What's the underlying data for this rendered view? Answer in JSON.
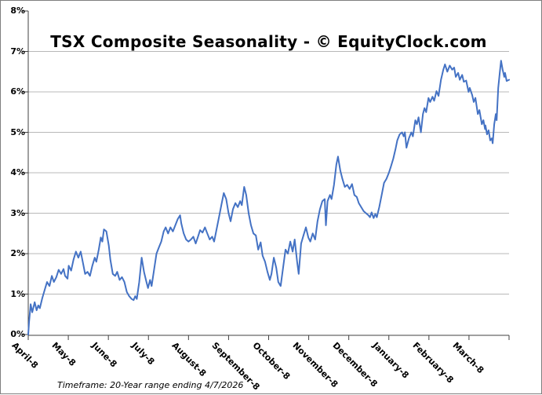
{
  "frame": {
    "border_color": "#7f7f7f",
    "background": "#ffffff"
  },
  "chart_data": {
    "type": "line",
    "title": "TSX Composite Seasonality - © EquityClock.com",
    "footnote": "Timeframe: 20-Year range ending 4/7/2026",
    "legend_position": "none",
    "grid": "horizontal",
    "grid_color": "#b8b8b8",
    "axis_color": "#404040",
    "line_color": "#4472c4",
    "ylim": [
      0,
      8
    ],
    "xlim_months": [
      0,
      12
    ],
    "y_tick_labels": [
      "0%",
      "1%",
      "2%",
      "3%",
      "4%",
      "5%",
      "6%",
      "7%",
      "8%"
    ],
    "x_tick_labels": [
      "April-8",
      "May-8",
      "June-8",
      "July-8",
      "August-8",
      "September-8",
      "October-8",
      "November-8",
      "December-8",
      "January-8",
      "February-8",
      "March-8"
    ],
    "series": [
      {
        "color": "#4472c4",
        "points": [
          [
            0.0,
            0.0
          ],
          [
            0.02,
            0.3
          ],
          [
            0.06,
            0.75
          ],
          [
            0.1,
            0.55
          ],
          [
            0.16,
            0.8
          ],
          [
            0.21,
            0.6
          ],
          [
            0.25,
            0.72
          ],
          [
            0.29,
            0.65
          ],
          [
            0.35,
            0.9
          ],
          [
            0.41,
            1.1
          ],
          [
            0.47,
            1.3
          ],
          [
            0.53,
            1.2
          ],
          [
            0.59,
            1.45
          ],
          [
            0.64,
            1.3
          ],
          [
            0.7,
            1.42
          ],
          [
            0.76,
            1.6
          ],
          [
            0.82,
            1.5
          ],
          [
            0.88,
            1.62
          ],
          [
            0.92,
            1.45
          ],
          [
            0.98,
            1.38
          ],
          [
            1.01,
            1.7
          ],
          [
            1.07,
            1.58
          ],
          [
            1.13,
            1.85
          ],
          [
            1.19,
            2.05
          ],
          [
            1.25,
            1.9
          ],
          [
            1.31,
            2.05
          ],
          [
            1.37,
            1.75
          ],
          [
            1.42,
            1.5
          ],
          [
            1.48,
            1.55
          ],
          [
            1.54,
            1.45
          ],
          [
            1.6,
            1.7
          ],
          [
            1.66,
            1.9
          ],
          [
            1.7,
            1.8
          ],
          [
            1.76,
            2.1
          ],
          [
            1.81,
            2.4
          ],
          [
            1.85,
            2.3
          ],
          [
            1.89,
            2.6
          ],
          [
            1.95,
            2.55
          ],
          [
            2.01,
            2.2
          ],
          [
            2.05,
            1.85
          ],
          [
            2.11,
            1.5
          ],
          [
            2.17,
            1.45
          ],
          [
            2.22,
            1.55
          ],
          [
            2.28,
            1.35
          ],
          [
            2.34,
            1.42
          ],
          [
            2.4,
            1.3
          ],
          [
            2.46,
            1.05
          ],
          [
            2.52,
            0.95
          ],
          [
            2.58,
            0.88
          ],
          [
            2.63,
            0.85
          ],
          [
            2.67,
            0.95
          ],
          [
            2.71,
            0.88
          ],
          [
            2.77,
            1.3
          ],
          [
            2.83,
            1.9
          ],
          [
            2.89,
            1.55
          ],
          [
            2.95,
            1.3
          ],
          [
            2.99,
            1.15
          ],
          [
            3.04,
            1.35
          ],
          [
            3.08,
            1.2
          ],
          [
            3.14,
            1.6
          ],
          [
            3.2,
            2.0
          ],
          [
            3.26,
            2.15
          ],
          [
            3.32,
            2.3
          ],
          [
            3.38,
            2.55
          ],
          [
            3.43,
            2.65
          ],
          [
            3.49,
            2.5
          ],
          [
            3.55,
            2.65
          ],
          [
            3.61,
            2.55
          ],
          [
            3.67,
            2.7
          ],
          [
            3.73,
            2.85
          ],
          [
            3.79,
            2.95
          ],
          [
            3.82,
            2.75
          ],
          [
            3.88,
            2.5
          ],
          [
            3.94,
            2.35
          ],
          [
            4.0,
            2.3
          ],
          [
            4.06,
            2.35
          ],
          [
            4.12,
            2.42
          ],
          [
            4.18,
            2.25
          ],
          [
            4.23,
            2.4
          ],
          [
            4.29,
            2.58
          ],
          [
            4.35,
            2.52
          ],
          [
            4.41,
            2.65
          ],
          [
            4.47,
            2.5
          ],
          [
            4.53,
            2.35
          ],
          [
            4.59,
            2.42
          ],
          [
            4.64,
            2.3
          ],
          [
            4.7,
            2.6
          ],
          [
            4.76,
            2.9
          ],
          [
            4.82,
            3.2
          ],
          [
            4.88,
            3.5
          ],
          [
            4.94,
            3.35
          ],
          [
            5.0,
            3.0
          ],
          [
            5.05,
            2.8
          ],
          [
            5.11,
            3.1
          ],
          [
            5.17,
            3.25
          ],
          [
            5.23,
            3.15
          ],
          [
            5.29,
            3.3
          ],
          [
            5.33,
            3.2
          ],
          [
            5.39,
            3.65
          ],
          [
            5.44,
            3.45
          ],
          [
            5.5,
            3.0
          ],
          [
            5.56,
            2.7
          ],
          [
            5.62,
            2.5
          ],
          [
            5.68,
            2.45
          ],
          [
            5.74,
            2.1
          ],
          [
            5.8,
            2.28
          ],
          [
            5.85,
            1.95
          ],
          [
            5.91,
            1.8
          ],
          [
            5.97,
            1.55
          ],
          [
            6.03,
            1.35
          ],
          [
            6.07,
            1.5
          ],
          [
            6.13,
            1.9
          ],
          [
            6.19,
            1.65
          ],
          [
            6.24,
            1.3
          ],
          [
            6.3,
            1.2
          ],
          [
            6.36,
            1.65
          ],
          [
            6.42,
            2.1
          ],
          [
            6.48,
            2.0
          ],
          [
            6.54,
            2.3
          ],
          [
            6.6,
            2.05
          ],
          [
            6.65,
            2.35
          ],
          [
            6.71,
            1.8
          ],
          [
            6.75,
            1.5
          ],
          [
            6.81,
            2.25
          ],
          [
            6.87,
            2.45
          ],
          [
            6.93,
            2.65
          ],
          [
            6.99,
            2.4
          ],
          [
            7.04,
            2.3
          ],
          [
            7.1,
            2.5
          ],
          [
            7.16,
            2.35
          ],
          [
            7.22,
            2.8
          ],
          [
            7.28,
            3.1
          ],
          [
            7.34,
            3.3
          ],
          [
            7.4,
            3.35
          ],
          [
            7.43,
            2.7
          ],
          [
            7.47,
            3.3
          ],
          [
            7.53,
            3.45
          ],
          [
            7.57,
            3.35
          ],
          [
            7.63,
            3.7
          ],
          [
            7.69,
            4.2
          ],
          [
            7.73,
            4.4
          ],
          [
            7.79,
            4.05
          ],
          [
            7.84,
            3.85
          ],
          [
            7.9,
            3.65
          ],
          [
            7.96,
            3.7
          ],
          [
            8.02,
            3.6
          ],
          [
            8.08,
            3.72
          ],
          [
            8.14,
            3.45
          ],
          [
            8.2,
            3.4
          ],
          [
            8.25,
            3.25
          ],
          [
            8.31,
            3.15
          ],
          [
            8.37,
            3.05
          ],
          [
            8.43,
            3.0
          ],
          [
            8.49,
            2.95
          ],
          [
            8.53,
            2.9
          ],
          [
            8.57,
            3.02
          ],
          [
            8.62,
            2.88
          ],
          [
            8.66,
            2.98
          ],
          [
            8.7,
            2.9
          ],
          [
            8.76,
            3.15
          ],
          [
            8.82,
            3.45
          ],
          [
            8.88,
            3.75
          ],
          [
            8.94,
            3.85
          ],
          [
            9.0,
            4.0
          ],
          [
            9.05,
            4.15
          ],
          [
            9.11,
            4.35
          ],
          [
            9.17,
            4.6
          ],
          [
            9.21,
            4.8
          ],
          [
            9.27,
            4.95
          ],
          [
            9.33,
            5.0
          ],
          [
            9.37,
            4.9
          ],
          [
            9.4,
            5.0
          ],
          [
            9.44,
            4.62
          ],
          [
            9.5,
            4.85
          ],
          [
            9.56,
            5.0
          ],
          [
            9.6,
            4.9
          ],
          [
            9.66,
            5.3
          ],
          [
            9.7,
            5.2
          ],
          [
            9.74,
            5.37
          ],
          [
            9.8,
            5.0
          ],
          [
            9.85,
            5.45
          ],
          [
            9.89,
            5.6
          ],
          [
            9.93,
            5.5
          ],
          [
            9.99,
            5.85
          ],
          [
            10.03,
            5.75
          ],
          [
            10.09,
            5.88
          ],
          [
            10.13,
            5.78
          ],
          [
            10.19,
            6.02
          ],
          [
            10.24,
            5.9
          ],
          [
            10.3,
            6.3
          ],
          [
            10.36,
            6.55
          ],
          [
            10.4,
            6.68
          ],
          [
            10.46,
            6.5
          ],
          [
            10.52,
            6.65
          ],
          [
            10.58,
            6.55
          ],
          [
            10.63,
            6.6
          ],
          [
            10.67,
            6.37
          ],
          [
            10.73,
            6.47
          ],
          [
            10.77,
            6.3
          ],
          [
            10.83,
            6.42
          ],
          [
            10.87,
            6.25
          ],
          [
            10.93,
            6.28
          ],
          [
            10.99,
            6.0
          ],
          [
            11.02,
            6.1
          ],
          [
            11.08,
            5.92
          ],
          [
            11.12,
            5.75
          ],
          [
            11.16,
            5.85
          ],
          [
            11.22,
            5.45
          ],
          [
            11.26,
            5.55
          ],
          [
            11.32,
            5.2
          ],
          [
            11.36,
            5.3
          ],
          [
            11.4,
            5.08
          ],
          [
            11.41,
            5.17
          ],
          [
            11.45,
            4.95
          ],
          [
            11.49,
            5.05
          ],
          [
            11.53,
            4.8
          ],
          [
            11.57,
            4.85
          ],
          [
            11.59,
            4.73
          ],
          [
            11.63,
            5.2
          ],
          [
            11.67,
            5.45
          ],
          [
            11.69,
            5.3
          ],
          [
            11.73,
            6.1
          ],
          [
            11.77,
            6.5
          ],
          [
            11.8,
            6.77
          ],
          [
            11.84,
            6.55
          ],
          [
            11.88,
            6.37
          ],
          [
            11.9,
            6.47
          ],
          [
            11.94,
            6.27
          ],
          [
            12.0,
            6.3
          ]
        ]
      }
    ]
  }
}
